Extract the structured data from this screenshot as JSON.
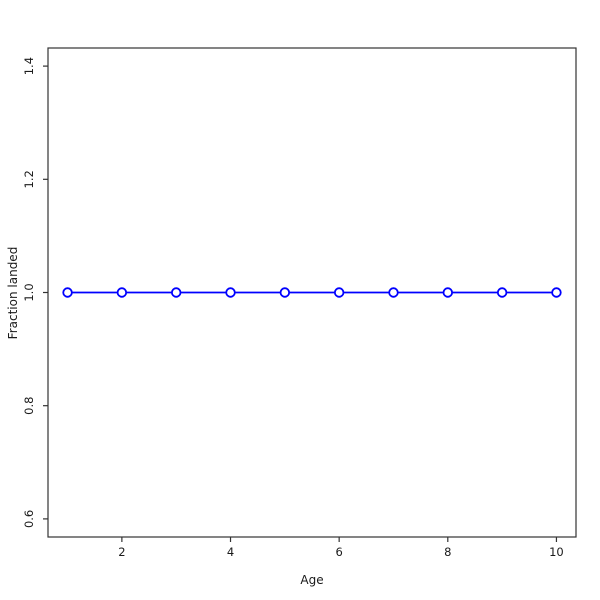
{
  "figure": {
    "background": "#ffffff"
  },
  "chart_data": {
    "type": "line",
    "title": "",
    "xlabel": "Age",
    "ylabel": "Fraction landed",
    "x": [
      1,
      2,
      3,
      4,
      5,
      6,
      7,
      8,
      9,
      10
    ],
    "series": [
      {
        "name": "Fraction landed",
        "values": [
          1.0,
          1.0,
          1.0,
          1.0,
          1.0,
          1.0,
          1.0,
          1.0,
          1.0,
          1.0
        ],
        "color": "#0000ff",
        "marker": "open-circle",
        "marker_fill": "#ffffff"
      }
    ],
    "xticks": [
      2,
      4,
      6,
      8,
      10
    ],
    "xtick_labels": [
      "2",
      "4",
      "6",
      "8",
      "10"
    ],
    "yticks": [
      0.6,
      0.8,
      1.0,
      1.2,
      1.4
    ],
    "ytick_labels": [
      "0.6",
      "0.8",
      "1.0",
      "1.2",
      "1.4"
    ],
    "xlim": [
      0.64,
      10.36
    ],
    "ylim": [
      0.568,
      1.432
    ],
    "grid": false,
    "legend": "none",
    "frame_color": "#333333",
    "tick_color": "#333333",
    "tick_label_color": "#1a1a1a"
  }
}
